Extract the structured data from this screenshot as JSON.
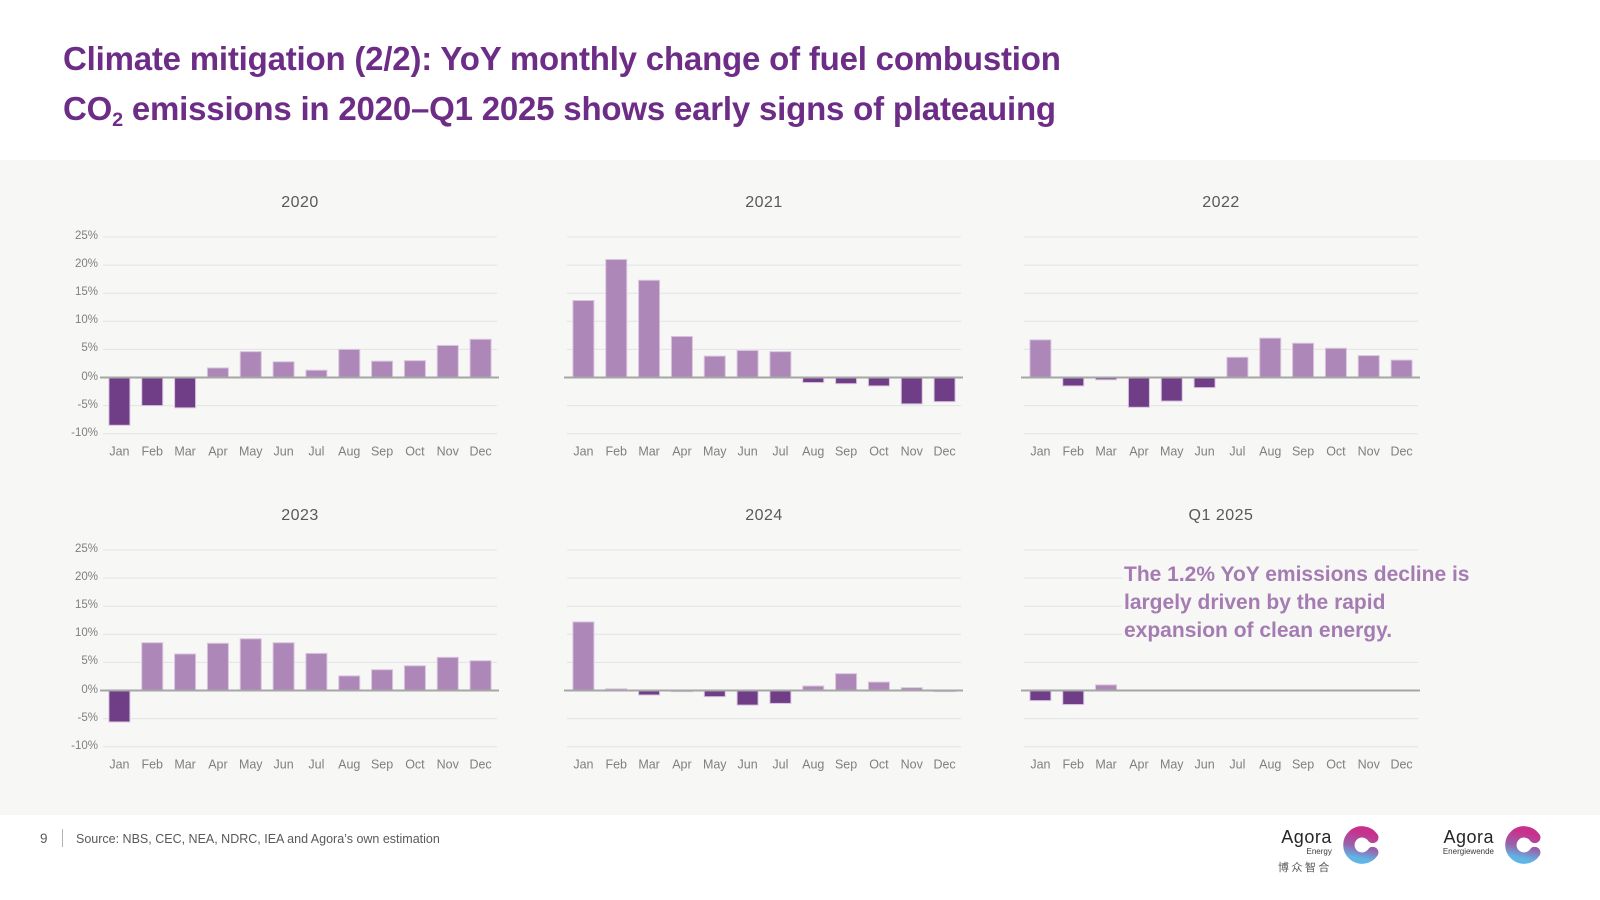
{
  "slide": {
    "title_line1": "Climate mitigation (2/2): YoY monthly change of fuel combustion",
    "title_line2_pre": "CO",
    "title_line2_sub": "2",
    "title_line2_post": " emissions in 2020–Q1 2025 shows early signs of plateauing"
  },
  "colors": {
    "title_purple": "#6d2d87",
    "bar_positive": "#ad87b8",
    "bar_negative": "#6f3e87",
    "bar_border": "#d9c5de",
    "band_background": "#f7f7f6",
    "gridline": "#e4e4e4",
    "zero_line": "#a6a6a6",
    "axis_text": "#7f7f7f",
    "chart_title_text": "#595959",
    "annotation_text": "#a57cb2",
    "logo_gradient_top": "#c8308b",
    "logo_gradient_mid": "#9b5fa9",
    "logo_gradient_bottom": "#5eb5e6"
  },
  "y_ticks": [
    {
      "label": "25%",
      "value": 25
    },
    {
      "label": "20%",
      "value": 20
    },
    {
      "label": "15%",
      "value": 15
    },
    {
      "label": "10%",
      "value": 10
    },
    {
      "label": "5%",
      "value": 5
    },
    {
      "label": "0%",
      "value": 0
    },
    {
      "label": "-5%",
      "value": -5
    },
    {
      "label": "-10%",
      "value": -10
    }
  ],
  "annotation": {
    "text": "The 1.2% YoY emissions decline is largely driven by the rapid expansion of clean energy."
  },
  "footer": {
    "page_number": "9",
    "source": "Source: NBS, CEC, NEA, NDRC, IEA and Agora’s own estimation"
  },
  "logos": {
    "energy": {
      "name": "Agora",
      "division": "Energy",
      "cn": "博众智合"
    },
    "energiewende": {
      "name": "Agora",
      "division": "Energiewende"
    }
  },
  "chart_data": [
    {
      "type": "bar",
      "title": "2020",
      "categories": [
        "Jan",
        "Feb",
        "Mar",
        "Apr",
        "May",
        "Jun",
        "Jul",
        "Aug",
        "Sep",
        "Oct",
        "Nov",
        "Dec"
      ],
      "values": [
        -8.5,
        -5.0,
        -5.4,
        1.7,
        4.6,
        2.8,
        1.3,
        5.0,
        2.9,
        3.0,
        5.7,
        6.8
      ],
      "ylim": [
        -10,
        25
      ],
      "show_y_labels": true,
      "grid": true,
      "legend": false
    },
    {
      "type": "bar",
      "title": "2021",
      "categories": [
        "Jan",
        "Feb",
        "Mar",
        "Apr",
        "May",
        "Jun",
        "Jul",
        "Aug",
        "Sep",
        "Oct",
        "Nov",
        "Dec"
      ],
      "values": [
        13.7,
        21.0,
        17.3,
        7.3,
        3.8,
        4.8,
        4.6,
        -0.9,
        -1.1,
        -1.5,
        -4.7,
        -4.3
      ],
      "ylim": [
        -10,
        25
      ],
      "show_y_labels": false,
      "grid": true,
      "legend": false
    },
    {
      "type": "bar",
      "title": "2022",
      "categories": [
        "Jan",
        "Feb",
        "Mar",
        "Apr",
        "May",
        "Jun",
        "Jul",
        "Aug",
        "Sep",
        "Oct",
        "Nov",
        "Dec"
      ],
      "values": [
        6.7,
        -1.5,
        -0.4,
        -5.3,
        -4.2,
        -1.8,
        3.6,
        7.0,
        6.1,
        5.2,
        3.9,
        3.1
      ],
      "ylim": [
        -10,
        25
      ],
      "show_y_labels": false,
      "grid": true,
      "legend": false
    },
    {
      "type": "bar",
      "title": "2023",
      "categories": [
        "Jan",
        "Feb",
        "Mar",
        "Apr",
        "May",
        "Jun",
        "Jul",
        "Aug",
        "Sep",
        "Oct",
        "Nov",
        "Dec"
      ],
      "values": [
        -5.6,
        8.5,
        6.5,
        8.4,
        9.2,
        8.5,
        6.6,
        2.6,
        3.7,
        4.4,
        5.9,
        5.3
      ],
      "ylim": [
        -10,
        25
      ],
      "show_y_labels": true,
      "grid": true,
      "legend": false
    },
    {
      "type": "bar",
      "title": "2024",
      "categories": [
        "Jan",
        "Feb",
        "Mar",
        "Apr",
        "May",
        "Jun",
        "Jul",
        "Aug",
        "Sep",
        "Oct",
        "Nov",
        "Dec"
      ],
      "values": [
        12.2,
        0.3,
        -0.8,
        -0.2,
        -1.1,
        -2.6,
        -2.3,
        0.8,
        3.0,
        1.5,
        0.5,
        -0.2
      ],
      "ylim": [
        -10,
        25
      ],
      "show_y_labels": false,
      "grid": true,
      "legend": false
    },
    {
      "type": "bar",
      "title": "Q1 2025",
      "categories": [
        "Jan",
        "Feb",
        "Mar",
        "Apr",
        "May",
        "Jun",
        "Jul",
        "Aug",
        "Sep",
        "Oct",
        "Nov",
        "Dec"
      ],
      "values": [
        -1.8,
        -2.5,
        1.0,
        null,
        null,
        null,
        null,
        null,
        null,
        null,
        null,
        null
      ],
      "ylim": [
        -10,
        25
      ],
      "show_y_labels": false,
      "grid": true,
      "legend": false
    }
  ]
}
